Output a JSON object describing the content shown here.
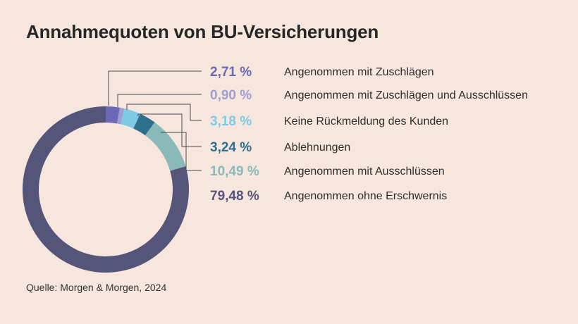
{
  "title": "Annahmequoten von BU-Versicherungen",
  "source": "Quelle: Morgen & Morgen, 2024",
  "chart_data": {
    "type": "pie",
    "variant": "donut",
    "title": "Annahmequoten von BU-Versicherungen",
    "slices": [
      {
        "label": "Angenommen mit Zuschlägen",
        "value": 2.71,
        "display": "2,71 %",
        "color": "#6b69b5"
      },
      {
        "label": "Angenommen mit Zuschlägen und Ausschlüssen",
        "value": 0.9,
        "display": "0,90 %",
        "color": "#9f9ed6"
      },
      {
        "label": "Keine Rückmeldung des Kunden",
        "value": 3.18,
        "display": "3,18 %",
        "color": "#7dcbe6"
      },
      {
        "label": "Ablehnungen",
        "value": 3.24,
        "display": "3,24 %",
        "color": "#2d6f8c"
      },
      {
        "label": "Angenommen mit Ausschlüssen",
        "value": 10.49,
        "display": "10,49 %",
        "color": "#8ab9b9"
      },
      {
        "label": "Angenommen ohne Erschwernis",
        "value": 79.48,
        "display": "79,48 %",
        "color": "#55557a"
      }
    ],
    "leader_line_color": "#4a4a4a"
  }
}
